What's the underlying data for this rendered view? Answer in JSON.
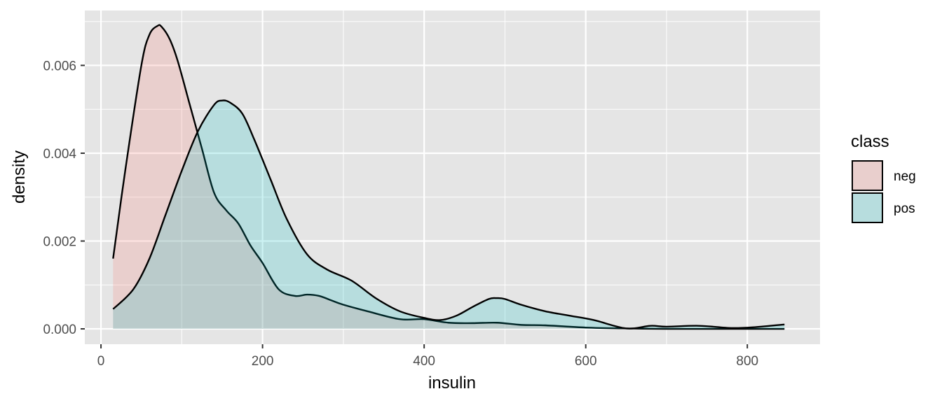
{
  "chart_data": {
    "type": "area",
    "subtype": "density",
    "xlabel": "insulin",
    "ylabel": "density",
    "xlim": [
      -20,
      890
    ],
    "ylim": [
      -0.00035,
      0.00725
    ],
    "x_ticks": [
      0,
      200,
      400,
      600,
      800
    ],
    "x_tick_labels": [
      "0",
      "200",
      "400",
      "600",
      "800"
    ],
    "y_ticks": [
      0,
      0.002,
      0.004,
      0.006
    ],
    "y_tick_labels": [
      "0.000",
      "0.002",
      "0.004",
      "0.006"
    ],
    "grid": true,
    "legend": {
      "title": "class",
      "position": "right",
      "entries": [
        "neg",
        "pos"
      ]
    },
    "colors": {
      "panel": "#e5e5e5",
      "grid": "#ffffff",
      "neg_fill": "#f8766d",
      "pos_fill": "#00bfc4",
      "outline": "#000000"
    },
    "fill_opacity": 0.2,
    "series": [
      {
        "name": "neg",
        "x": [
          15,
          30,
          50,
          60,
          70,
          75,
          85,
          95,
          110,
          125,
          140,
          155,
          170,
          185,
          200,
          220,
          240,
          255,
          270,
          285,
          300,
          330,
          370,
          400,
          430,
          460,
          490,
          520,
          550,
          600,
          650,
          700,
          750,
          800,
          846
        ],
        "y": [
          0.0016,
          0.0036,
          0.006,
          0.0067,
          0.0069,
          0.00688,
          0.0066,
          0.0061,
          0.0051,
          0.0041,
          0.0031,
          0.0027,
          0.0024,
          0.0019,
          0.0015,
          0.0009,
          0.00075,
          0.00078,
          0.00075,
          0.00065,
          0.00055,
          0.0004,
          0.00022,
          0.00022,
          0.00014,
          0.00013,
          0.00014,
          9e-05,
          8e-05,
          3e-05,
          1e-05,
          0.0,
          0.0,
          0.0,
          0.0
        ]
      },
      {
        "name": "pos",
        "x": [
          15,
          40,
          60,
          80,
          100,
          120,
          140,
          150,
          160,
          175,
          190,
          210,
          230,
          255,
          280,
          310,
          340,
          370,
          400,
          420,
          440,
          460,
          480,
          490,
          500,
          520,
          550,
          580,
          610,
          650,
          680,
          700,
          740,
          780,
          810,
          846
        ],
        "y": [
          0.00045,
          0.0009,
          0.0016,
          0.0026,
          0.0036,
          0.0045,
          0.0051,
          0.0052,
          0.00515,
          0.0049,
          0.0043,
          0.0034,
          0.0025,
          0.0017,
          0.00135,
          0.0011,
          0.0007,
          0.0004,
          0.00025,
          0.0002,
          0.0003,
          0.0005,
          0.00068,
          0.0007,
          0.00068,
          0.00055,
          0.0004,
          0.0003,
          0.0002,
          1e-05,
          7e-05,
          5e-05,
          7e-05,
          2e-05,
          4e-05,
          0.0001
        ]
      }
    ]
  }
}
